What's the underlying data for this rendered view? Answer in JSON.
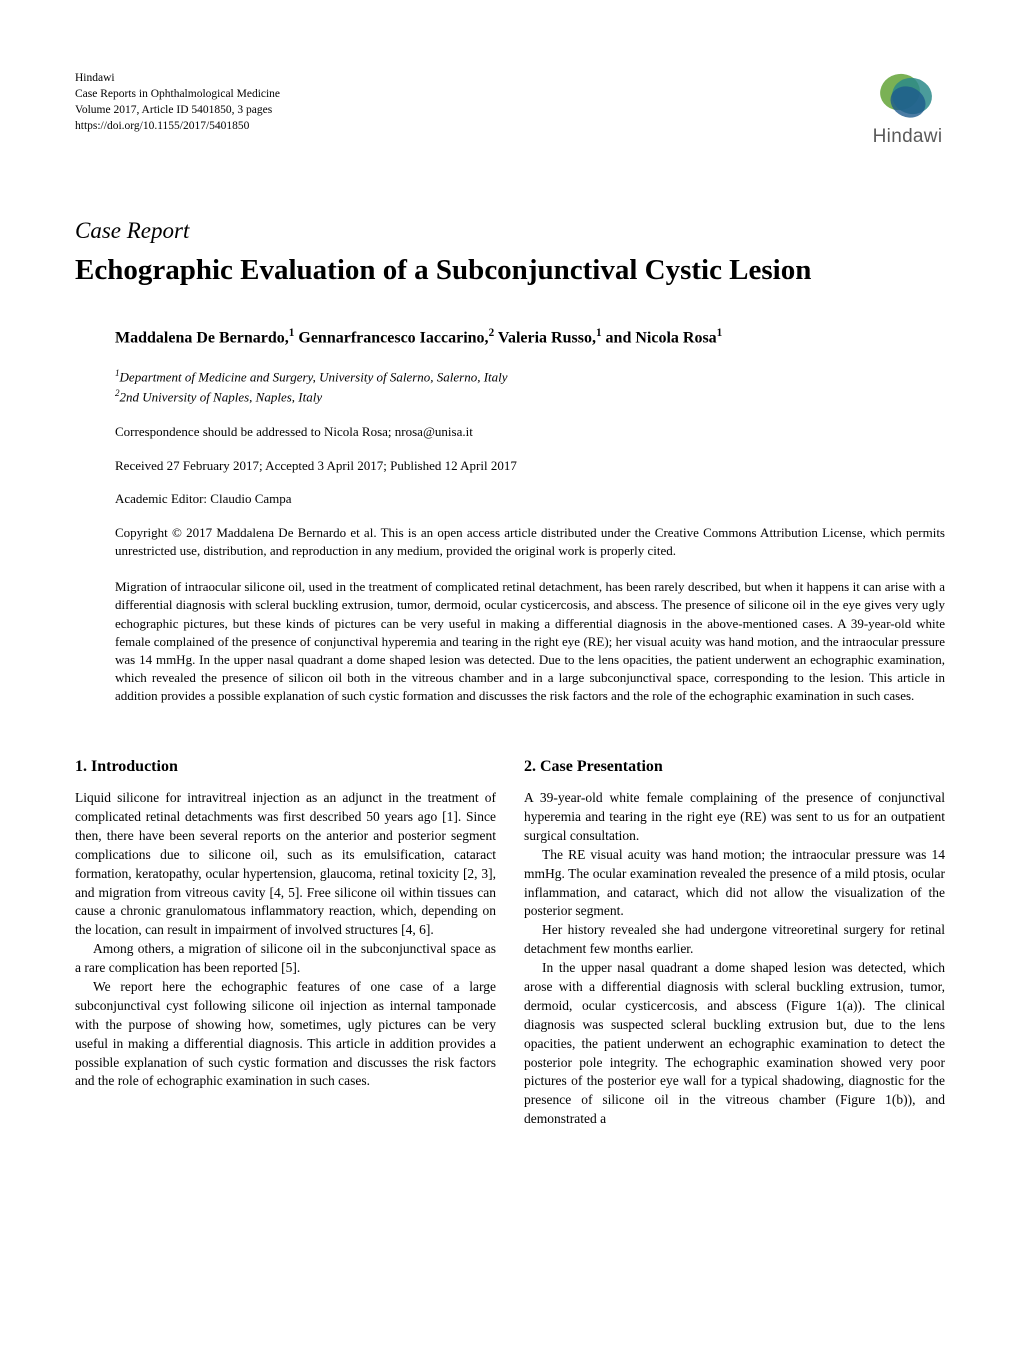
{
  "journal": {
    "publisher": "Hindawi",
    "name": "Case Reports in Ophthalmological Medicine",
    "volume": "Volume 2017, Article ID 5401850, 3 pages",
    "doi": "https://doi.org/10.1155/2017/5401850",
    "logo_text": "Hindawi",
    "logo_colors": {
      "green": "#6fa843",
      "teal": "#2d8f8f",
      "blue": "#1e5a8e"
    }
  },
  "article": {
    "type": "Case Report",
    "title": "Echographic Evaluation of a Subconjunctival Cystic Lesion",
    "authors_html": "Maddalena De Bernardo,<sup>1</sup> Gennarfrancesco Iaccarino,<sup>2</sup> Valeria Russo,<sup>1</sup> and Nicola Rosa<sup>1</sup>",
    "affiliations": [
      "<sup>1</sup>Department of Medicine and Surgery, University of Salerno, Salerno, Italy",
      "<sup>2</sup>2nd University of Naples, Naples, Italy"
    ],
    "correspondence": "Correspondence should be addressed to Nicola Rosa; nrosa@unisa.it",
    "dates": "Received 27 February 2017; Accepted 3 April 2017; Published 12 April 2017",
    "editor": "Academic Editor: Claudio Campa",
    "copyright": "Copyright © 2017 Maddalena De Bernardo et al. This is an open access article distributed under the Creative Commons Attribution License, which permits unrestricted use, distribution, and reproduction in any medium, provided the original work is properly cited.",
    "abstract": "Migration of intraocular silicone oil, used in the treatment of complicated retinal detachment, has been rarely described, but when it happens it can arise with a differential diagnosis with scleral buckling extrusion, tumor, dermoid, ocular cysticercosis, and abscess. The presence of silicone oil in the eye gives very ugly echographic pictures, but these kinds of pictures can be very useful in making a differential diagnosis in the above-mentioned cases. A 39-year-old white female complained of the presence of conjunctival hyperemia and tearing in the right eye (RE); her visual acuity was hand motion, and the intraocular pressure was 14 mmHg. In the upper nasal quadrant a dome shaped lesion was detected. Due to the lens opacities, the patient underwent an echographic examination, which revealed the presence of silicon oil both in the vitreous chamber and in a large subconjunctival space, corresponding to the lesion. This article in addition provides a possible explanation of such cystic formation and discusses the risk factors and the role of the echographic examination in such cases."
  },
  "sections": {
    "intro": {
      "heading": "1. Introduction",
      "p1": "Liquid silicone for intravitreal injection as an adjunct in the treatment of complicated retinal detachments was first described 50 years ago [1]. Since then, there have been several reports on the anterior and posterior segment complications due to silicone oil, such as its emulsification, cataract formation, keratopathy, ocular hypertension, glaucoma, retinal toxicity [2, 3], and migration from vitreous cavity [4, 5]. Free silicone oil within tissues can cause a chronic granulomatous inflammatory reaction, which, depending on the location, can result in impairment of involved structures [4, 6].",
      "p2": "Among others, a migration of silicone oil in the subconjunctival space as a rare complication has been reported [5].",
      "p3": "We report here the echographic features of one case of a large subconjunctival cyst following silicone oil injection as internal tamponade with the purpose of showing how, sometimes, ugly pictures can be very useful in making a differential diagnosis. This article in addition provides a possible explanation of such cystic formation and discusses the risk factors and the role of echographic examination in such cases."
    },
    "case": {
      "heading": "2. Case Presentation",
      "p1": "A 39-year-old white female complaining of the presence of conjunctival hyperemia and tearing in the right eye (RE) was sent to us for an outpatient surgical consultation.",
      "p2": "The RE visual acuity was hand motion; the intraocular pressure was 14 mmHg. The ocular examination revealed the presence of a mild ptosis, ocular inflammation, and cataract, which did not allow the visualization of the posterior segment.",
      "p3": "Her history revealed she had undergone vitreoretinal surgery for retinal detachment few months earlier.",
      "p4": "In the upper nasal quadrant a dome shaped lesion was detected, which arose with a differential diagnosis with scleral buckling extrusion, tumor, dermoid, ocular cysticercosis, and abscess (Figure 1(a)). The clinical diagnosis was suspected scleral buckling extrusion but, due to the lens opacities, the patient underwent an echographic examination to detect the posterior pole integrity. The echographic examination showed very poor pictures of the posterior eye wall for a typical shadowing, diagnostic for the presence of silicone oil in the vitreous chamber (Figure 1(b)), and demonstrated a"
    }
  }
}
